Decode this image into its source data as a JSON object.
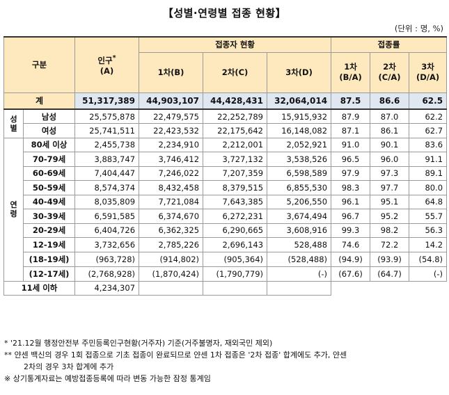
{
  "title": "【성별·연령별 접종 현황】",
  "unit": "(단위 : 명, %)",
  "header": {
    "category": "구분",
    "population_line1": "인구",
    "population_sup": "*",
    "population_line2": "(A)",
    "vaccinated_group": "접종자 현황",
    "rate_group": "접종률",
    "dose1": "1차(B)",
    "dose2": "2차(C)",
    "dose3": "3차(D)",
    "rate1_line1": "1차",
    "rate1_line2": "(B/A)",
    "rate2_line1": "2차",
    "rate2_line2": "(C/A)",
    "rate3_line1": "3차",
    "rate3_line2": "(D/A)"
  },
  "total": {
    "label": "계",
    "pop": "51,317,389",
    "d1": "44,903,107",
    "d2": "44,428,431",
    "d3": "32,064,014",
    "r1": "87.5",
    "r2": "86.6",
    "r3": "62.5"
  },
  "gender_group": "성별",
  "gender_rows": [
    {
      "label": "남성",
      "pop": "25,575,878",
      "d1": "22,479,575",
      "d2": "22,252,789",
      "d3": "15,915,932",
      "r1": "87.9",
      "r2": "87.0",
      "r3": "62.2"
    },
    {
      "label": "여성",
      "pop": "25,741,511",
      "d1": "22,423,532",
      "d2": "22,175,642",
      "d3": "16,148,082",
      "r1": "87.1",
      "r2": "86.1",
      "r3": "62.7"
    }
  ],
  "age_group": "연령",
  "age_rows": [
    {
      "label": "80세 이상",
      "pop": "2,455,738",
      "d1": "2,234,910",
      "d2": "2,212,001",
      "d3": "2,052,921",
      "r1": "91.0",
      "r2": "90.1",
      "r3": "83.6"
    },
    {
      "label": "70-79세",
      "pop": "3,883,747",
      "d1": "3,746,412",
      "d2": "3,727,132",
      "d3": "3,538,526",
      "r1": "96.5",
      "r2": "96.0",
      "r3": "91.1"
    },
    {
      "label": "60-69세",
      "pop": "7,404,447",
      "d1": "7,246,022",
      "d2": "7,207,359",
      "d3": "6,598,589",
      "r1": "97.9",
      "r2": "97.3",
      "r3": "89.1"
    },
    {
      "label": "50-59세",
      "pop": "8,574,374",
      "d1": "8,432,458",
      "d2": "8,379,515",
      "d3": "6,855,530",
      "r1": "98.3",
      "r2": "97.7",
      "r3": "80.0"
    },
    {
      "label": "40-49세",
      "pop": "8,035,809",
      "d1": "7,721,084",
      "d2": "7,643,385",
      "d3": "5,206,550",
      "r1": "96.1",
      "r2": "95.1",
      "r3": "64.8"
    },
    {
      "label": "30-39세",
      "pop": "6,591,585",
      "d1": "6,374,670",
      "d2": "6,272,231",
      "d3": "3,674,494",
      "r1": "96.7",
      "r2": "95.2",
      "r3": "55.7"
    },
    {
      "label": "20-29세",
      "pop": "6,404,726",
      "d1": "6,362,325",
      "d2": "6,290,665",
      "d3": "3,608,916",
      "r1": "99.3",
      "r2": "98.2",
      "r3": "56.3"
    },
    {
      "label": "12-19세",
      "pop": "3,732,656",
      "d1": "2,785,226",
      "d2": "2,696,143",
      "d3": "528,488",
      "r1": "74.6",
      "r2": "72.2",
      "r3": "14.2"
    }
  ],
  "sub_rows": [
    {
      "label": "(18-19세)",
      "pop": "(963,728)",
      "d1": "(914,802)",
      "d2": "(905,364)",
      "d3": "(528,488)",
      "r1": "(94.9)",
      "r2": "(93.9)",
      "r3": "(54.8)"
    },
    {
      "label": "(12-17세)",
      "pop": "(2,768,928)",
      "d1": "(1,870,424)",
      "d2": "(1,790,779)",
      "d3": "(-)",
      "r1": "(67.6)",
      "r2": "(64.7)",
      "r3": "(-)"
    }
  ],
  "under11": {
    "label": "11세 이하",
    "pop": "4,234,307"
  },
  "notes": {
    "n1": "* '21.12월 행정안전부 주민등록인구현황(거주자) 기준(거주불명자, 재외국민 제외)",
    "n2a": "** 얀센 백신의 경우 1회 접종으로 기초 접종이 완료되므로 얀센 1차 접종은 '2차 접종' 합계에도 추가, 얀센",
    "n2b": "2차의 경우 3차 합계에 추가",
    "n3": "※ 상기통계자료는 예방접종등록에 따라 변동 가능한 잠정 통계임"
  }
}
